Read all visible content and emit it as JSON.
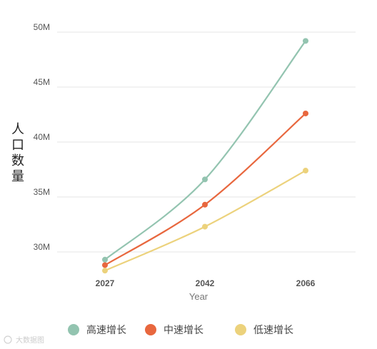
{
  "chart_data": {
    "type": "line",
    "title": "",
    "xlabel": "Year",
    "ylabel": "人口数量",
    "x": [
      "2027",
      "2042",
      "2066"
    ],
    "y_ticks": [
      "30M",
      "35M",
      "40M",
      "45M",
      "50M"
    ],
    "y_tick_values": [
      30,
      35,
      40,
      45,
      50
    ],
    "ylim": [
      30,
      50
    ],
    "grid": true,
    "legend_position": "bottom",
    "series": [
      {
        "name": "高速增长",
        "color": "#93c4b0",
        "values": [
          29.3,
          36.6,
          49.2
        ]
      },
      {
        "name": "中速增长",
        "color": "#e8673e",
        "values": [
          28.8,
          34.3,
          42.6
        ]
      },
      {
        "name": "低速增长",
        "color": "#ecd27c",
        "values": [
          28.3,
          32.3,
          37.4
        ]
      }
    ]
  },
  "watermark": "大数据图"
}
